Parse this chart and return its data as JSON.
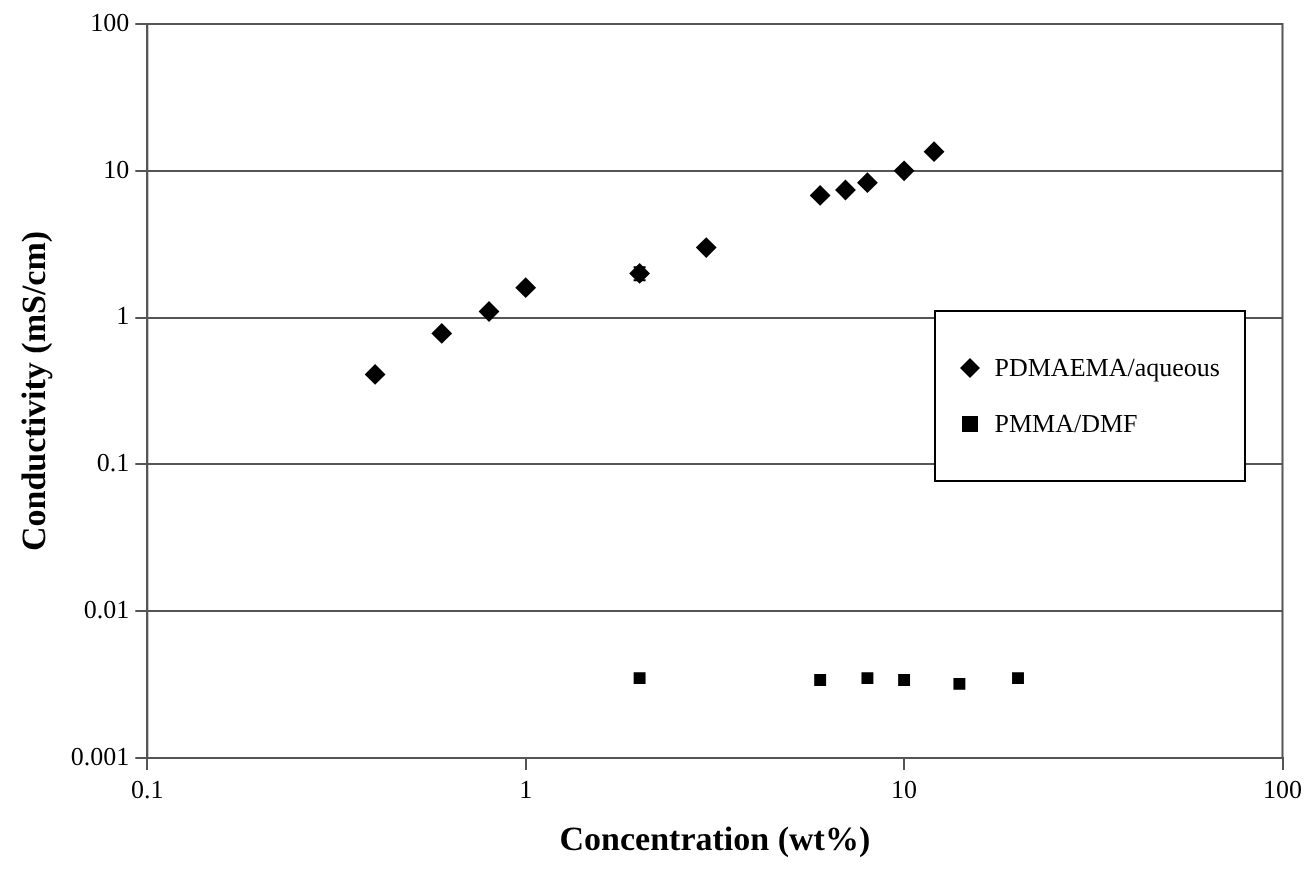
{
  "chart_data": {
    "type": "scatter",
    "xlabel": "Concentration (wt%)",
    "ylabel": "Conductivity (mS/cm)",
    "log": "xy",
    "xlim": [
      0.1,
      100
    ],
    "xticks": [
      0.1,
      1,
      10,
      100
    ],
    "ylim": [
      0.001,
      100
    ],
    "yticks": [
      0.001,
      0.01,
      0.1,
      1,
      10,
      100
    ],
    "grid": "y",
    "legend": "right",
    "series": [
      {
        "name": "PDMAEMA/aqueous",
        "color": "#000000",
        "marker": "diamond",
        "x": [
          0.4,
          0.6,
          0.8,
          1,
          2,
          3,
          6,
          7,
          8,
          10,
          12
        ],
        "values": [
          0.41,
          0.78,
          1.1,
          1.6,
          2.0,
          3.0,
          6.8,
          7.4,
          8.3,
          10,
          13.5
        ],
        "errors": [
          null,
          null,
          null,
          null,
          0.2,
          null,
          null,
          null,
          null,
          null,
          null
        ]
      },
      {
        "name": "PMMA/DMF",
        "color": "#000000",
        "marker": "square",
        "x": [
          2,
          6,
          8,
          10,
          14,
          20
        ],
        "values": [
          0.0035,
          0.0034,
          0.0035,
          0.0034,
          0.0032,
          0.0035
        ]
      }
    ]
  }
}
